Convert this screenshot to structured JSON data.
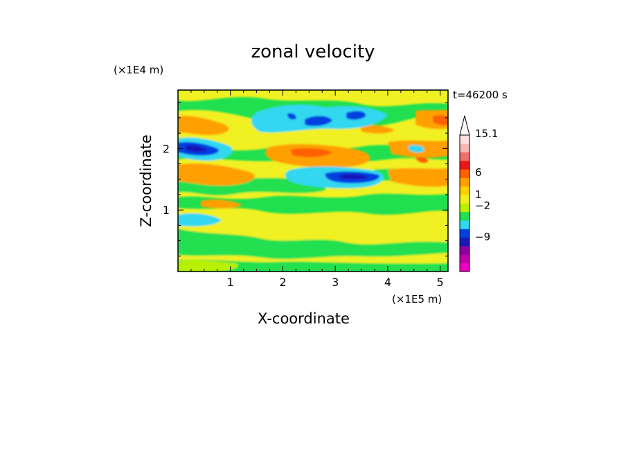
{
  "chart_data": {
    "type": "heatmap",
    "title": "zonal velocity",
    "xlabel": "X-coordinate",
    "ylabel": "Z-coordinate",
    "x_unit_label": "(×1E5 m)",
    "y_unit_label": "(×1E4 m)",
    "time_label": "t=46200 s",
    "xlim": [
      0,
      5.15
    ],
    "ylim": [
      0,
      2.95
    ],
    "x_ticks": [
      "1",
      "2",
      "3",
      "4",
      "5"
    ],
    "y_ticks": [
      "1",
      "2"
    ],
    "colorbar": {
      "labels": [
        "15.1",
        "6",
        "1",
        "−2",
        "−9"
      ],
      "colors_low_to_high": [
        "#f000c0",
        "#c000a8",
        "#9000a0",
        "#1818b8",
        "#0040e0",
        "#30d8f0",
        "#20e050",
        "#b8f000",
        "#f0f020",
        "#ffd000",
        "#ffa000",
        "#ff6000",
        "#e81818",
        "#f07070",
        "#f8b8b8",
        "#ffe0e0"
      ],
      "extend": "max"
    }
  },
  "colors": {
    "blue": "#0040e0",
    "navy": "#1818b8",
    "cyan": "#30d8f0",
    "green": "#20e050",
    "yellow": "#f0f020",
    "orange": "#ffa000",
    "darkorange": "#ff6000",
    "lime": "#b8f000"
  }
}
